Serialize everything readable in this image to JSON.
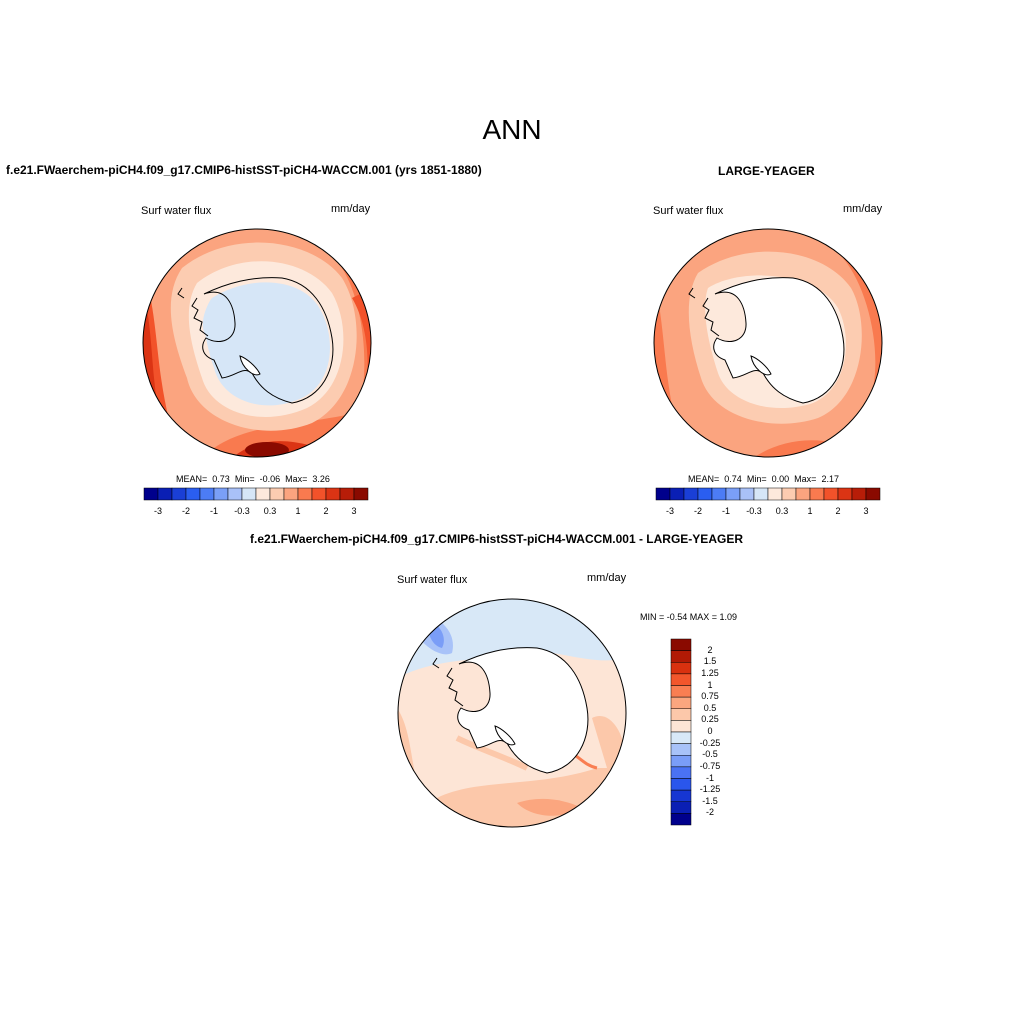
{
  "page_title": "ANN",
  "panels": [
    {
      "case_title": "f.e21.FWaerchem-piCH4.f09_g17.CMIP6-histSST-piCH4-WACCM.001 (yrs 1851-1880)",
      "variable": "Surf water flux",
      "units": "mm/day",
      "stats": {
        "mean_label": "MEAN=",
        "mean": "0.73",
        "min_label": "Min=",
        "min": "-0.06",
        "max_label": "Max=",
        "max": "3.26"
      },
      "colorbar": {
        "colors": [
          "#00008c",
          "#0a1fb4",
          "#1a3fd6",
          "#2a5ef0",
          "#4c7cf5",
          "#7a9ff7",
          "#a9c1f8",
          "#d6e6f7",
          "#fde9dc",
          "#fcccb1",
          "#fba47f",
          "#f97a4f",
          "#f2522a",
          "#db3414",
          "#b71d08",
          "#8a0a00"
        ],
        "labels": [
          "-3",
          "-2",
          "-1",
          "-0.3",
          "0.3",
          "1",
          "2",
          "3"
        ]
      }
    },
    {
      "case_title": "LARGE-YEAGER",
      "variable": "Surf water flux",
      "units": "mm/day",
      "stats": {
        "mean_label": "MEAN=",
        "mean": "0.74",
        "min_label": "Min=",
        "min": "0.00",
        "max_label": "Max=",
        "max": "2.17"
      },
      "colorbar": {
        "colors": [
          "#00008c",
          "#0a1fb4",
          "#1a3fd6",
          "#2a5ef0",
          "#4c7cf5",
          "#7a9ff7",
          "#a9c1f8",
          "#d6e6f7",
          "#fde9dc",
          "#fcccb1",
          "#fba47f",
          "#f97a4f",
          "#f2522a",
          "#db3414",
          "#b71d08",
          "#8a0a00"
        ],
        "labels": [
          "-3",
          "-2",
          "-1",
          "-0.3",
          "0.3",
          "1",
          "2",
          "3"
        ]
      }
    },
    {
      "case_title": "f.e21.FWaerchem-piCH4.f09_g17.CMIP6-histSST-piCH4-WACCM.001 - LARGE-YEAGER",
      "variable": "Surf water flux",
      "units": "mm/day",
      "minmax": "MIN =  -0.54 MAX =   1.09",
      "colorbar": {
        "colors": [
          "#00008c",
          "#0a1fb4",
          "#1636d2",
          "#2a56ec",
          "#4a72f3",
          "#7a9df7",
          "#a8c2f8",
          "#d8e8f7",
          "#fde5d6",
          "#fcc8aa",
          "#fba67f",
          "#f97e52",
          "#f2562c",
          "#d9310f",
          "#b11a05",
          "#8a0a00"
        ],
        "labels": [
          "2",
          "1.5",
          "1.25",
          "1",
          "0.75",
          "0.5",
          "0.25",
          "0",
          "-0.25",
          "-0.5",
          "-0.75",
          "-1",
          "-1.25",
          "-1.5",
          "-2"
        ]
      }
    }
  ],
  "colors": {
    "land": "#ffffff",
    "coast": "#000000"
  }
}
